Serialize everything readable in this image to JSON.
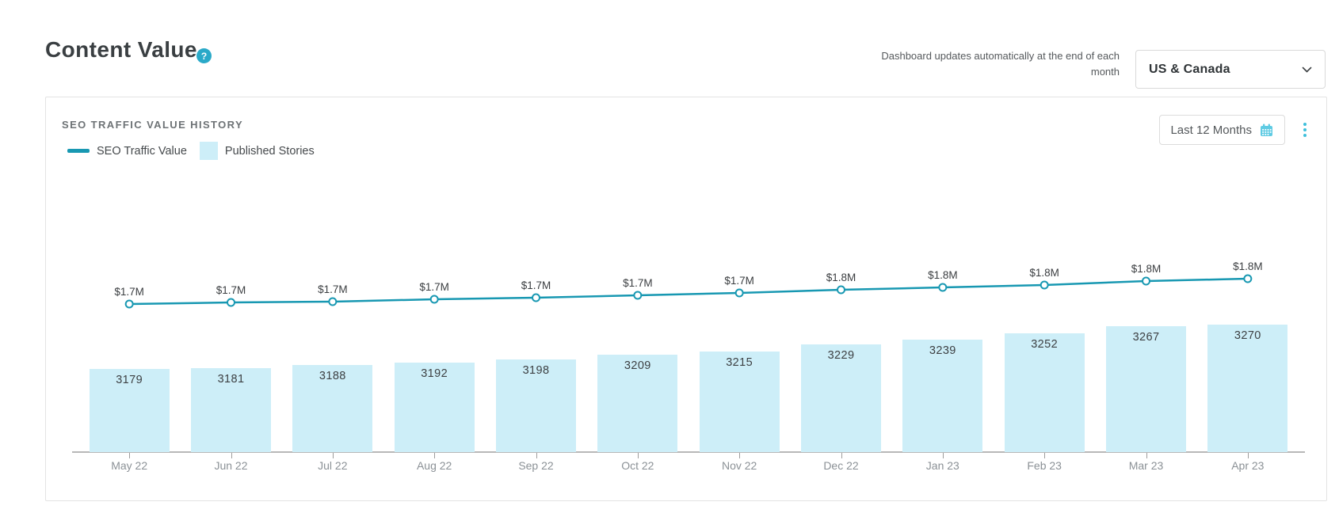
{
  "header": {
    "title": "Content Value",
    "help_icon_glyph": "?",
    "update_note": "Dashboard updates automatically at the end of each month",
    "region_selector": {
      "value": "US & Canada"
    }
  },
  "card": {
    "title": "SEO TRAFFIC VALUE HISTORY",
    "range_button": {
      "label": "Last 12 Months",
      "icon": "calendar"
    },
    "menu_icon": "kebab-vertical",
    "legend": {
      "line_label": "SEO Traffic Value",
      "bar_label": "Published Stories"
    }
  },
  "colors": {
    "line": "#1898b2",
    "bar_fill": "#cdeef8",
    "accent_icons": "#3fc0dc",
    "help_icon_bg": "#2aa9c8",
    "axis": "#b8b8b8"
  },
  "chart_data": {
    "type": "bar+line",
    "title": "SEO TRAFFIC VALUE HISTORY",
    "categories": [
      "May 22",
      "Jun 22",
      "Jul 22",
      "Aug 22",
      "Sep 22",
      "Oct 22",
      "Nov 22",
      "Dec 22",
      "Jan 23",
      "Feb 23",
      "Mar 23",
      "Apr 23"
    ],
    "series": [
      {
        "name": "SEO Traffic Value",
        "type": "line",
        "color": "#1898b2",
        "unit": "million USD",
        "point_labels": [
          "$1.7M",
          "$1.7M",
          "$1.7M",
          "$1.7M",
          "$1.7M",
          "$1.7M",
          "$1.7M",
          "$1.8M",
          "$1.8M",
          "$1.8M",
          "$1.8M",
          "$1.8M"
        ],
        "values": [
          1.7,
          1.705,
          1.71,
          1.72,
          1.725,
          1.735,
          1.745,
          1.755,
          1.765,
          1.775,
          1.79,
          1.8
        ]
      },
      {
        "name": "Published Stories",
        "type": "bar",
        "color": "#cdeef8",
        "values": [
          3179,
          3181,
          3188,
          3192,
          3198,
          3209,
          3215,
          3229,
          3239,
          3252,
          3267,
          3270
        ]
      }
    ],
    "xlabel": "",
    "ylabel": "",
    "grid": false,
    "y_axis_visible": false,
    "legend_position": "top-left"
  }
}
